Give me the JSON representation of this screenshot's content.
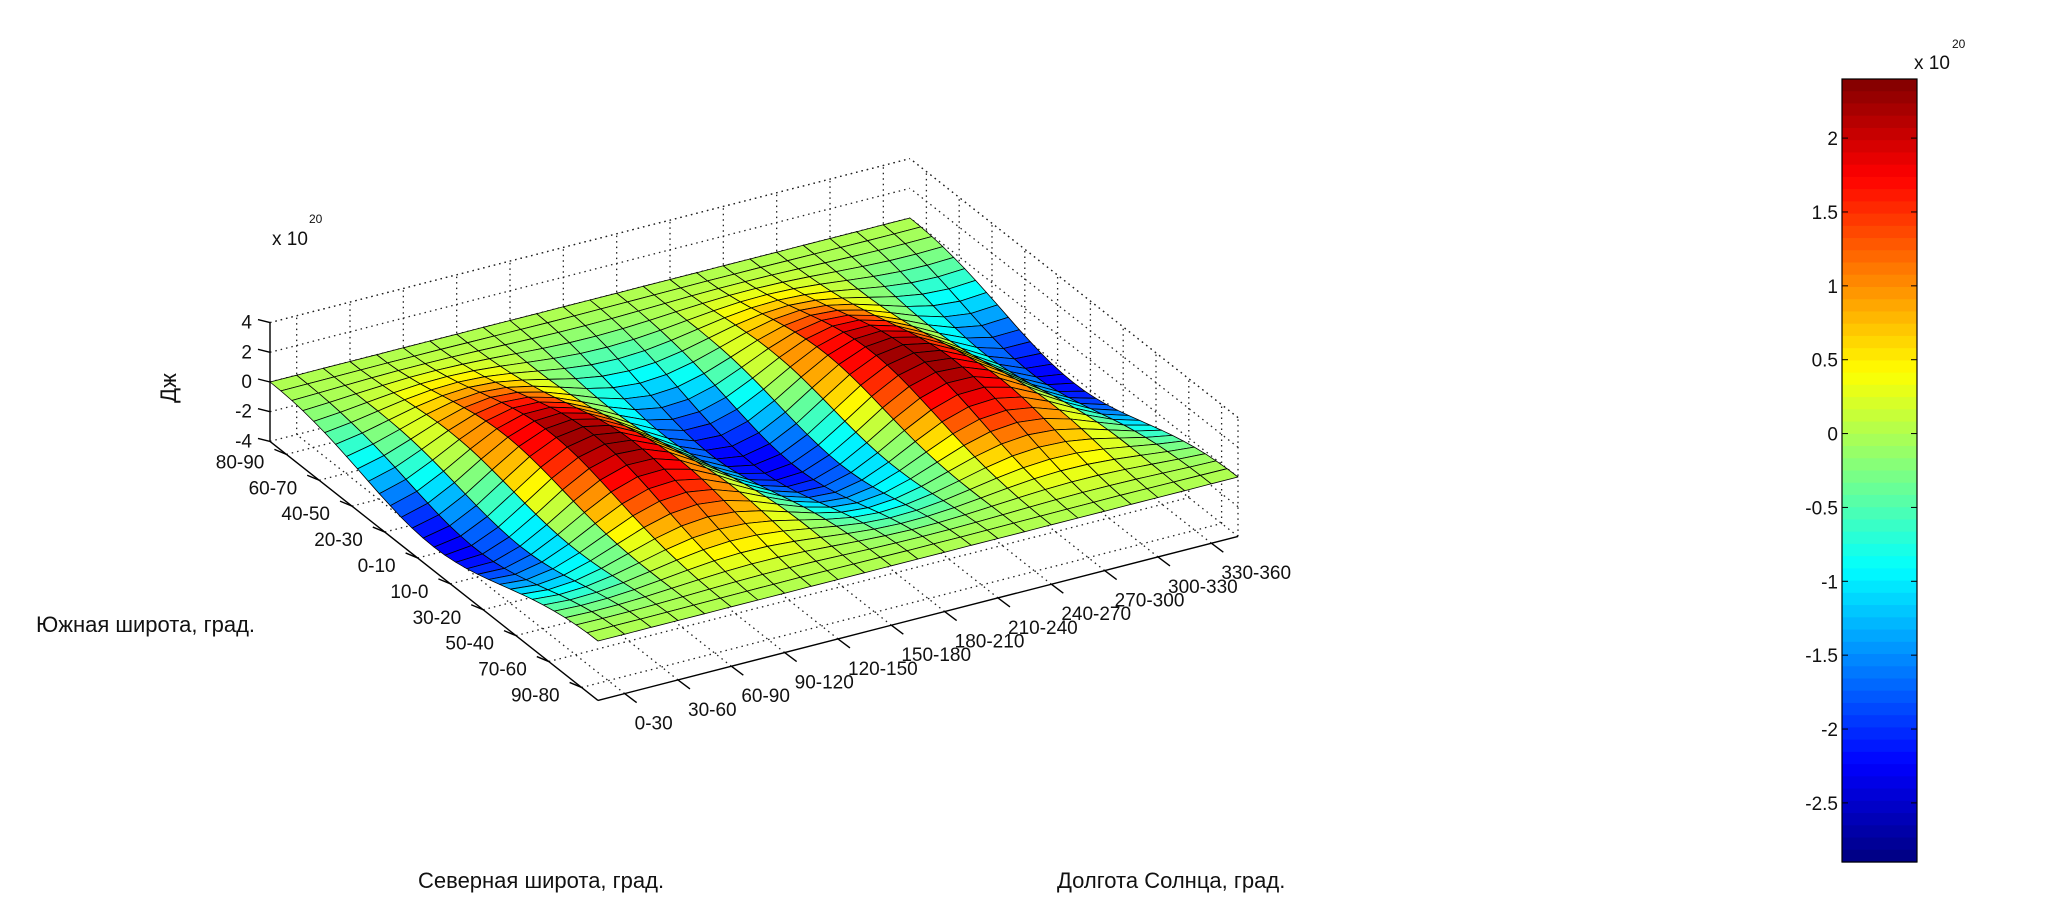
{
  "chart_data": {
    "type": "surface",
    "zlabel": "Дж",
    "z_multiplier": "x 10",
    "z_exponent": "20",
    "zlim": [
      -4,
      4
    ],
    "z_ticks": [
      "4",
      "2",
      "0",
      "-2",
      "-4"
    ],
    "lat_axis": {
      "south_label": "Южная широта, град.",
      "north_label": "Северная широта, град.",
      "ticks": [
        "80-90",
        "60-70",
        "40-50",
        "20-30",
        "0-10",
        "10-0",
        "30-20",
        "50-40",
        "70-60",
        "90-80"
      ]
    },
    "lon_axis": {
      "label": "Долгота Солнца, град.",
      "ticks": [
        "0-30",
        "30-60",
        "60-90",
        "90-120",
        "120-150",
        "150-180",
        "180-210",
        "210-240",
        "240-270",
        "270-300",
        "300-330",
        "330-360"
      ]
    },
    "amplitude": 2.4,
    "colorbar": {
      "multiplier": "x 10",
      "exponent": "20",
      "min": -2.9,
      "max": 2.4,
      "ticks": [
        "2",
        "1.5",
        "1",
        "0.5",
        "0",
        "-0.5",
        "-1",
        "-1.5",
        "-2",
        "-2.5"
      ],
      "tick_values": [
        2,
        1.5,
        1,
        0.5,
        0,
        -0.5,
        -1,
        -1.5,
        -2,
        -2.5
      ],
      "colormap": "jet"
    }
  }
}
